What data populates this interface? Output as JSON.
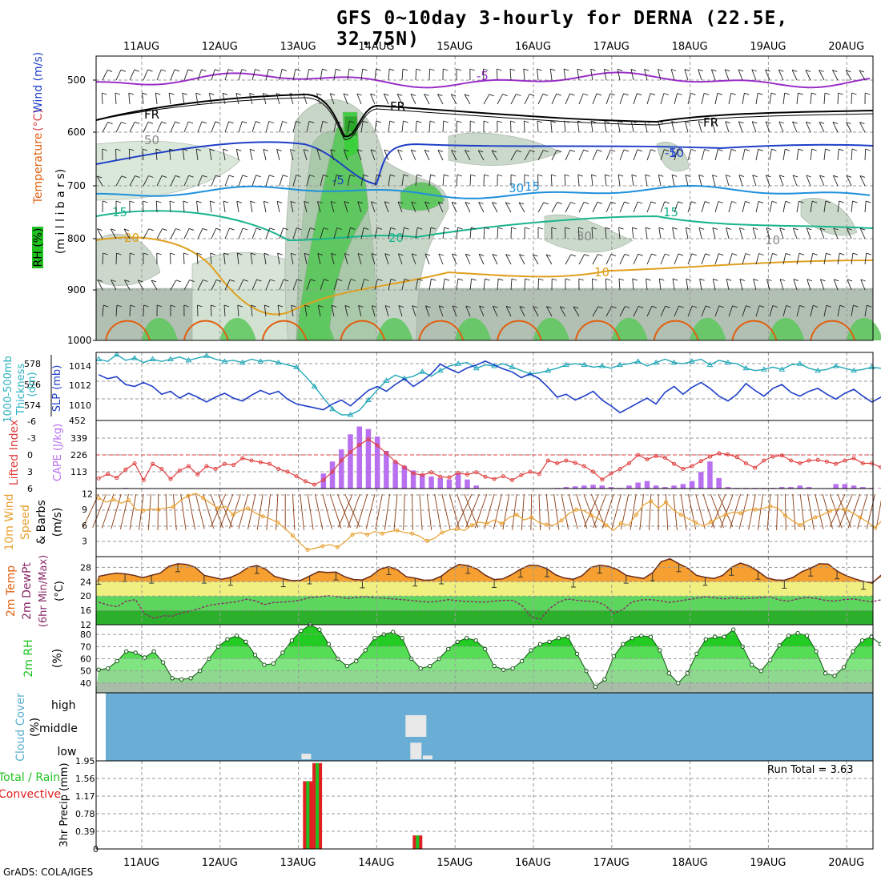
{
  "title": "GFS 0~10day 3-hourly for DERNA (22.5E, 32.75N)",
  "credit": "GrADS: COLA/IGES",
  "colors": {
    "grid": "#9a9a9a",
    "purple": "#9b30c8",
    "blue": "#1e3ec8",
    "lightblue": "#1e90dc",
    "teal": "#18b48c",
    "orange": "#e0a020",
    "darkorange": "#e06010",
    "cloud": "#6aaed6",
    "precip_green": "#1fc21f",
    "precip_red": "#e02020"
  },
  "chart_data": [
    {
      "type": "contour",
      "panel": "upper-air",
      "ylabels": [
        "Temperature (°C)",
        "Wind (m/s)",
        "RH (%)",
        "(millibars)"
      ],
      "ylabel_parts": {
        "temp": "Temperature",
        "temp_unit": "(°C)",
        "wind": "Wind (m/s)",
        "rh": "RH (%)",
        "mb": "(m i l l i b a r s)"
      },
      "x_ticks": [
        "11AUG",
        "12AUG",
        "13AUG",
        "14AUG",
        "15AUG",
        "16AUG",
        "17AUG",
        "18AUG",
        "19AUG",
        "20AUG"
      ],
      "y_ticks": [
        500,
        600,
        700,
        800,
        900,
        1000
      ],
      "contour_labels": [
        "-5",
        "FR",
        "FR",
        "FR",
        "-5",
        "-5",
        "10",
        "15",
        "15",
        "15",
        "20",
        "20",
        "10",
        "30",
        "30",
        "10",
        "50"
      ]
    },
    {
      "type": "line",
      "panel": "thickness-slp",
      "ylabels": {
        "left": "1000-500mb Thickness (dm)",
        "right": "SLP (mb)"
      },
      "left_ticks": [
        574,
        576,
        578
      ],
      "right_ticks": [
        1010,
        1012,
        1014
      ],
      "ylim_left": [
        573,
        579
      ],
      "ylim_right": [
        1008.5,
        1015.5
      ],
      "series": [
        {
          "name": "Thickness",
          "values": [
            578.4,
            578.2,
            578.8,
            578.3,
            578.5,
            578.1,
            578.4,
            578.2,
            578.4,
            578.6,
            578.3,
            578.5,
            578.7,
            578.4,
            578.2,
            578.3,
            578.1,
            578.4,
            578.2,
            578.3,
            578.1,
            577.9,
            577.7,
            576.9,
            576.0,
            575.0,
            574.0,
            573.5,
            573.5,
            573.9,
            574.8,
            575.7,
            576.5,
            577.0,
            576.7,
            576.9,
            577.3,
            576.9,
            577.4,
            577.8,
            578.0,
            578.1,
            577.6,
            577.9,
            577.8,
            578.0,
            577.7,
            577.4,
            577.1,
            577.2,
            577.4,
            577.6,
            577.9,
            578.0,
            577.9,
            577.7,
            577.8,
            577.6,
            577.9,
            578.0,
            578.2,
            577.8,
            578.1,
            578.4,
            578.1,
            578.0,
            578.2,
            578.4,
            577.9,
            578.3,
            578.1,
            578.0,
            577.6,
            577.4,
            577.5,
            577.7,
            577.5,
            577.9,
            578.0,
            577.6,
            577.4,
            577.5,
            577.8,
            577.6,
            577.4,
            577.5,
            577.7,
            577.6,
            577.5
          ]
        },
        {
          "name": "SLP",
          "values": [
            1013.2,
            1012.8,
            1013.0,
            1012.2,
            1012.0,
            1012.4,
            1012.0,
            1011.2,
            1011.5,
            1010.8,
            1011.3,
            1010.9,
            1010.4,
            1010.9,
            1011.3,
            1010.8,
            1010.5,
            1011.1,
            1011.6,
            1011.2,
            1011.5,
            1010.7,
            1010.2,
            1010.0,
            1009.8,
            1009.6,
            1010.2,
            1010.6,
            1010.0,
            1010.8,
            1011.6,
            1012.0,
            1011.5,
            1012.2,
            1012.8,
            1012.0,
            1012.6,
            1013.3,
            1014.3,
            1013.8,
            1013.4,
            1013.9,
            1014.2,
            1014.6,
            1014.2,
            1013.8,
            1013.5,
            1012.9,
            1013.3,
            1012.8,
            1011.9,
            1010.9,
            1011.2,
            1010.6,
            1011.0,
            1011.5,
            1010.6,
            1010.0,
            1009.3,
            1009.8,
            1010.3,
            1010.8,
            1010.2,
            1011.4,
            1012.0,
            1011.2,
            1011.9,
            1012.4,
            1011.8,
            1011.0,
            1010.5,
            1011.2,
            1012.3,
            1011.6,
            1011.0,
            1011.8,
            1012.2,
            1011.4,
            1011.0,
            1011.5,
            1011.8,
            1011.2,
            1010.7,
            1011.3,
            1011.7,
            1011.0,
            1010.4,
            1010.9,
            1011.4
          ]
        }
      ]
    },
    {
      "type": "bar+line",
      "panel": "cape-li",
      "ylabels": {
        "left": "Lifted Index",
        "right": "CAPE (J/kg)"
      },
      "left_ticks": [
        "-6",
        "-3",
        "0",
        "3",
        "6"
      ],
      "right_ticks": [
        113,
        226,
        339,
        452
      ],
      "ylim_right": [
        0,
        452
      ],
      "series": [
        {
          "name": "CAPE",
          "values": [
            0,
            0,
            0,
            5,
            0,
            0,
            0,
            0,
            0,
            0,
            0,
            0,
            0,
            0,
            0,
            0,
            0,
            0,
            0,
            0,
            0,
            0,
            0,
            0,
            0,
            100,
            180,
            260,
            360,
            412,
            395,
            345,
            250,
            180,
            150,
            120,
            95,
            80,
            70,
            60,
            100,
            60,
            20,
            0,
            0,
            0,
            0,
            0,
            0,
            0,
            0,
            5,
            10,
            15,
            20,
            25,
            20,
            10,
            5,
            20,
            40,
            50,
            20,
            10,
            20,
            30,
            50,
            110,
            180,
            70,
            10,
            5,
            5,
            5,
            5,
            5,
            10,
            10,
            20,
            10,
            0,
            0,
            30,
            30,
            20,
            10,
            5,
            5,
            5
          ]
        },
        {
          "name": "Lifted Index",
          "values": [
            4.2,
            3.4,
            4.1,
            2.6,
            1.5,
            4.5,
            1.6,
            2.5,
            4.3,
            2.8,
            2.0,
            3.5,
            2.0,
            2.5,
            1.6,
            1.8,
            0.6,
            1.0,
            1.3,
            1.6,
            2.5,
            3.0,
            3.8,
            4.7,
            5.3,
            4.5,
            3.0,
            1.0,
            -0.5,
            -1.8,
            -2.8,
            -1.7,
            -0.3,
            1.2,
            2.2,
            3.3,
            3.6,
            3.1,
            3.9,
            4.0,
            3.2,
            3.5,
            3.1,
            3.9,
            4.3,
            3.8,
            4.5,
            3.6,
            3.0,
            3.4,
            1.0,
            1.5,
            1.0,
            1.4,
            2.0,
            3.0,
            4.4,
            3.3,
            2.5,
            1.5,
            0.0,
            0.8,
            0.2,
            0.5,
            1.6,
            2.5,
            2.0,
            1.1,
            0.3,
            -0.3,
            -0.1,
            0.4,
            1.5,
            2.3,
            1.0,
            0.3,
            0.1,
            1.0,
            1.5,
            1.0,
            0.9,
            1.2,
            1.6,
            1.0,
            0.6,
            1.5,
            1.5,
            2.2,
            3.5
          ]
        }
      ]
    },
    {
      "type": "line",
      "panel": "wind10m",
      "ylabels": {
        "left": "10m Wind Speed & Barbs (m/s)"
      },
      "left_ticks": [
        3,
        6,
        9,
        12
      ],
      "ylim": [
        0,
        13
      ],
      "series": [
        {
          "name": "10m Wind Speed",
          "values": [
            11.2,
            10.4,
            10.9,
            10.2,
            10.8,
            9.0,
            8.8,
            9.1,
            9.0,
            9.3,
            9.5,
            10.8,
            11.6,
            12.1,
            11.2,
            10.2,
            9.2,
            9.6,
            8.0,
            8.8,
            9.2,
            8.3,
            7.7,
            7.2,
            6.5,
            5.3,
            4.0,
            2.5,
            1.3,
            1.6,
            2.0,
            2.3,
            1.8,
            2.8,
            4.2,
            4.6,
            4.2,
            4.8,
            4.4,
            4.8,
            5.0,
            4.6,
            4.4,
            3.9,
            3.0,
            3.5,
            4.6,
            5.1,
            5.3,
            5.0,
            6.0,
            6.6,
            6.3,
            7.0,
            6.3,
            7.5,
            8.0,
            7.0,
            7.5,
            6.5,
            6.1,
            6.0,
            6.9,
            8.2,
            9.0,
            8.8,
            7.9,
            7.2,
            6.0,
            5.0,
            6.4,
            6.0,
            8.0,
            9.9,
            10.6,
            9.2,
            10.4,
            8.9,
            8.0,
            7.2,
            6.5,
            5.8,
            6.6,
            7.4,
            8.0,
            8.5,
            8.3,
            8.9,
            9.0,
            9.2,
            9.6,
            9.3,
            7.8,
            6.8,
            6.0,
            6.9,
            7.5,
            8.0,
            8.7,
            9.1,
            9.0,
            8.4,
            7.5,
            6.6,
            5.5,
            7.0,
            7.8
          ]
        }
      ]
    },
    {
      "type": "area",
      "panel": "temp2m",
      "ylabels": {
        "left": "2m Temp 2m DewPt (6hr Min/Max) (°C)",
        "l1": "2m Temp",
        "l2": "2m DewPt",
        "l3": "(6hr Min/Max)",
        "l4": "(°C)"
      },
      "left_ticks": [
        12,
        16,
        20,
        24,
        28
      ],
      "ylim": [
        12,
        31
      ],
      "series": [
        {
          "name": "2m Temp",
          "values": [
            25.5,
            26.0,
            26.4,
            26.2,
            25.8,
            25.1,
            25.8,
            26.4,
            28.3,
            29.0,
            28.8,
            28.0,
            25.8,
            25.2,
            24.7,
            25.2,
            26.3,
            28.0,
            28.5,
            27.5,
            25.5,
            24.8,
            24.3,
            24.4,
            25.6,
            26.8,
            26.6,
            26.7,
            25.4,
            24.6,
            24.5,
            25.6,
            27.5,
            28.2,
            27.3,
            25.4,
            25.0,
            24.4,
            24.5,
            25.6,
            27.5,
            28.8,
            28.5,
            27.6,
            25.8,
            24.6,
            24.8,
            26.0,
            27.5,
            28.6,
            28.5,
            27.6,
            25.9,
            25.0,
            24.7,
            25.7,
            28.0,
            28.6,
            28.3,
            27.4,
            25.8,
            25.3,
            24.9,
            26.5,
            29.6,
            30.4,
            29.0,
            27.8,
            25.8,
            25.2,
            24.9,
            25.8,
            28.0,
            29.2,
            28.4,
            26.9,
            25.1,
            24.5,
            24.4,
            25.2,
            26.8,
            27.8,
            29.0,
            28.9,
            27.0,
            25.7,
            24.8,
            24.1,
            23.6,
            25.8,
            26.5
          ]
        },
        {
          "name": "2m DewPt",
          "values": [
            18.3,
            17.5,
            17.0,
            18.6,
            19.0,
            15.0,
            13.8,
            14.5,
            14.4,
            15.3,
            15.8,
            16.6,
            17.4,
            17.8,
            18.1,
            18.4,
            19.1,
            18.7,
            17.6,
            18.2,
            18.3,
            18.5,
            18.9,
            19.6,
            19.8,
            20.1,
            19.8,
            19.3,
            19.6,
            19.8,
            19.5,
            19.4,
            19.2,
            19.0,
            18.8,
            18.5,
            18.3,
            18.6,
            19.0,
            18.7,
            18.5,
            18.4,
            18.3,
            18.6,
            18.8,
            18.8,
            17.4,
            14.2,
            13.5,
            16.5,
            18.3,
            19.2,
            18.8,
            18.6,
            18.5,
            17.5,
            15.2,
            16.3,
            18.4,
            18.9,
            19.0,
            18.7,
            18.2,
            18.6,
            19.0,
            19.4,
            19.8,
            19.5,
            19.2,
            19.5,
            19.2,
            19.4,
            19.6,
            19.8,
            18.9,
            18.6,
            19.2,
            19.6,
            19.3,
            18.8,
            18.6,
            19.0,
            19.2,
            18.8,
            18.4,
            18.9,
            18.6
          ]
        }
      ]
    },
    {
      "type": "area",
      "panel": "rh2m",
      "ylabels": {
        "left": "2m RH (%)",
        "l1": "2m RH",
        "l2": "(%)"
      },
      "left_ticks": [
        40,
        50,
        60,
        70,
        80
      ],
      "ylim": [
        32,
        88
      ],
      "series": [
        {
          "name": "2m RH",
          "values": [
            51,
            52,
            58,
            66,
            65,
            61,
            66,
            57,
            44,
            43,
            44,
            50,
            60,
            70,
            76,
            79,
            74,
            63,
            55,
            56,
            65,
            75,
            83,
            88,
            84,
            72,
            60,
            54,
            58,
            67,
            77,
            80,
            82,
            77,
            60,
            52,
            54,
            60,
            68,
            74,
            77,
            75,
            68,
            54,
            51,
            52,
            58,
            67,
            72,
            74,
            77,
            78,
            64,
            50,
            37,
            43,
            62,
            72,
            77,
            79,
            78,
            67,
            48,
            40,
            48,
            64,
            76,
            78,
            78,
            84,
            70,
            55,
            50,
            59,
            71,
            79,
            81,
            79,
            66,
            48,
            46,
            53,
            66,
            75,
            78,
            72,
            57
          ]
        }
      ]
    },
    {
      "type": "bar",
      "panel": "cloud",
      "ylabels": {
        "left": "Cloud Cover (%)",
        "l1": "Cloud Cover",
        "l2": "(%)"
      },
      "levels": [
        "high",
        "middle",
        "low"
      ],
      "events": [
        {
          "level": "low",
          "day": 2.1,
          "pct": 30
        },
        {
          "level": "middle",
          "day": 3.5,
          "pct": 100
        },
        {
          "level": "low",
          "day": 3.5,
          "pct": 90
        },
        {
          "level": "low",
          "day": 3.65,
          "pct": 20
        }
      ]
    },
    {
      "type": "bar",
      "panel": "precip",
      "ylabels": {
        "left": "3hr Precip (mm)",
        "right_total": "Run Total = 3.63",
        "legend1": "Total / Rain",
        "legend2": "Convective"
      },
      "left_ticks": [
        "0",
        "0.39",
        "0.78",
        "1.17",
        "1.56",
        "1.95"
      ],
      "ylim": [
        0,
        1.95
      ],
      "bars": [
        {
          "day": 2.12,
          "total": 1.5,
          "conv": 1.5
        },
        {
          "day": 2.24,
          "total": 1.9,
          "conv": 1.9
        },
        {
          "day": 3.52,
          "total": 0.3,
          "conv": 0.3
        }
      ]
    }
  ]
}
